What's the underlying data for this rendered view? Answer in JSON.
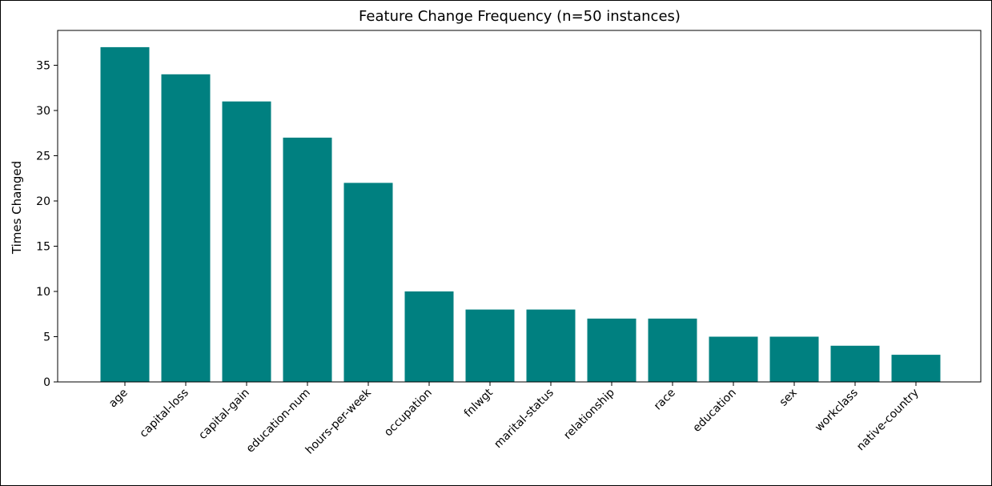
{
  "chart_data": {
    "type": "bar",
    "title": "Feature Change Frequency (n=50 instances)",
    "xlabel": "",
    "ylabel": "Times Changed",
    "categories": [
      "age",
      "capital-loss",
      "capital-gain",
      "education-num",
      "hours-per-week",
      "occupation",
      "fnlwgt",
      "marital-status",
      "relationship",
      "race",
      "education",
      "sex",
      "workclass",
      "native-country"
    ],
    "values": [
      37,
      34,
      31,
      27,
      22,
      10,
      8,
      8,
      7,
      7,
      5,
      5,
      4,
      3
    ],
    "ylim": [
      0,
      38.85
    ],
    "yticks": [
      0,
      5,
      10,
      15,
      20,
      25,
      30,
      35
    ],
    "grid": false,
    "bar_color": "#008080",
    "x_tick_rotation_deg": 45
  }
}
